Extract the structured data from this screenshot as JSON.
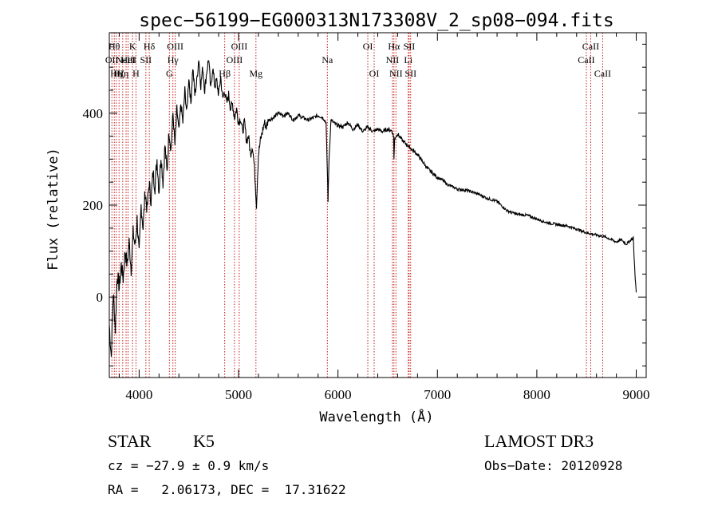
{
  "chart_data": {
    "type": "line",
    "title": "spec−56199−EG000313N173308V_2_sp08−094.fits",
    "xlabel": "Wavelength (Å)",
    "ylabel": "Flux (relative)",
    "xlim": [
      3700,
      9100
    ],
    "ylim": [
      -175,
      575
    ],
    "x_ticks": [
      4000,
      5000,
      6000,
      7000,
      8000,
      9000
    ],
    "y_ticks": [
      0,
      200,
      400
    ],
    "series": [
      {
        "name": "flux",
        "x": [
          3700,
          3720,
          3740,
          3760,
          3780,
          3800,
          3820,
          3840,
          3860,
          3880,
          3900,
          3920,
          3940,
          3960,
          3980,
          4000,
          4020,
          4040,
          4060,
          4080,
          4100,
          4120,
          4140,
          4160,
          4180,
          4200,
          4220,
          4240,
          4260,
          4280,
          4300,
          4320,
          4340,
          4360,
          4380,
          4400,
          4420,
          4440,
          4460,
          4480,
          4500,
          4520,
          4540,
          4560,
          4580,
          4600,
          4620,
          4640,
          4660,
          4680,
          4700,
          4720,
          4740,
          4760,
          4780,
          4800,
          4820,
          4840,
          4860,
          4880,
          4900,
          4920,
          4940,
          4960,
          4980,
          5000,
          5020,
          5040,
          5060,
          5080,
          5100,
          5120,
          5140,
          5160,
          5180,
          5200,
          5220,
          5240,
          5260,
          5280,
          5300,
          5350,
          5400,
          5450,
          5500,
          5550,
          5600,
          5650,
          5700,
          5750,
          5800,
          5850,
          5880,
          5890,
          5900,
          5910,
          5930,
          5980,
          6050,
          6100,
          6150,
          6200,
          6250,
          6300,
          6350,
          6400,
          6450,
          6500,
          6540,
          6560,
          6563,
          6570,
          6600,
          6650,
          6700,
          6750,
          6800,
          6850,
          6900,
          6950,
          7000,
          7050,
          7100,
          7150,
          7200,
          7300,
          7400,
          7500,
          7600,
          7650,
          7700,
          7800,
          7900,
          8000,
          8100,
          8200,
          8300,
          8400,
          8500,
          8600,
          8700,
          8800,
          8850,
          8900,
          8950,
          8970,
          8980,
          8990,
          9000
        ],
        "y": [
          -60,
          -130,
          10,
          -70,
          50,
          20,
          70,
          40,
          100,
          70,
          120,
          60,
          140,
          110,
          170,
          90,
          200,
          150,
          230,
          190,
          250,
          210,
          270,
          240,
          300,
          230,
          310,
          250,
          330,
          270,
          360,
          320,
          400,
          330,
          410,
          360,
          420,
          380,
          450,
          400,
          480,
          420,
          500,
          440,
          470,
          520,
          460,
          500,
          450,
          490,
          520,
          450,
          500,
          460,
          470,
          440,
          480,
          430,
          450,
          420,
          440,
          410,
          420,
          390,
          410,
          380,
          390,
          360,
          380,
          340,
          350,
          310,
          330,
          280,
          200,
          310,
          340,
          360,
          380,
          370,
          385,
          390,
          400,
          395,
          400,
          385,
          395,
          390,
          385,
          390,
          395,
          390,
          380,
          300,
          210,
          300,
          385,
          375,
          370,
          380,
          365,
          375,
          360,
          370,
          360,
          365,
          360,
          365,
          362,
          350,
          300,
          345,
          355,
          340,
          330,
          320,
          310,
          295,
          280,
          270,
          260,
          255,
          245,
          240,
          235,
          232,
          225,
          215,
          208,
          198,
          188,
          180,
          178,
          170,
          162,
          158,
          155,
          148,
          140,
          135,
          130,
          120,
          125,
          115,
          125,
          130,
          80,
          40,
          10
        ]
      }
    ],
    "line_markers": [
      {
        "x": 3726,
        "label": "OII",
        "row": 2
      },
      {
        "x": 3750,
        "label": "Hθ",
        "row": 1
      },
      {
        "x": 3770,
        "label": "Hη",
        "row": 3
      },
      {
        "x": 3798,
        "label": "Hζ",
        "row": 3
      },
      {
        "x": 3835,
        "label": "Hη",
        "row": 3
      },
      {
        "x": 3869,
        "label": "NeIII",
        "row": 2
      },
      {
        "x": 3889,
        "label": "HeI",
        "row": 2
      },
      {
        "x": 3934,
        "label": "K",
        "row": 1
      },
      {
        "x": 3968,
        "label": "H",
        "row": 3
      },
      {
        "x": 4068,
        "label": "SII",
        "row": 2
      },
      {
        "x": 4102,
        "label": "Hδ",
        "row": 1
      },
      {
        "x": 4304,
        "label": "G",
        "row": 3
      },
      {
        "x": 4340,
        "label": "Hγ",
        "row": 2
      },
      {
        "x": 4363,
        "label": "OIII",
        "row": 1
      },
      {
        "x": 4861,
        "label": "Hβ",
        "row": 3
      },
      {
        "x": 4959,
        "label": "OIII",
        "row": 2
      },
      {
        "x": 5007,
        "label": "OIII",
        "row": 1
      },
      {
        "x": 5175,
        "label": "Mg",
        "row": 3
      },
      {
        "x": 5893,
        "label": "Na",
        "row": 2
      },
      {
        "x": 6300,
        "label": "OI",
        "row": 1
      },
      {
        "x": 6364,
        "label": "OI",
        "row": 3
      },
      {
        "x": 6548,
        "label": "NII",
        "row": 2
      },
      {
        "x": 6563,
        "label": "Hα",
        "row": 1
      },
      {
        "x": 6583,
        "label": "NII",
        "row": 3
      },
      {
        "x": 6707,
        "label": "Li",
        "row": 2
      },
      {
        "x": 6716,
        "label": "SII",
        "row": 1
      },
      {
        "x": 6731,
        "label": "SII",
        "row": 3
      },
      {
        "x": 8498,
        "label": "CaII",
        "row": 2
      },
      {
        "x": 8542,
        "label": "CaII",
        "row": 1
      },
      {
        "x": 8662,
        "label": "CaII",
        "row": 3
      }
    ]
  },
  "info": {
    "object_class": "STAR",
    "subclass": "K5",
    "survey": "LAMOST DR3",
    "cz": "cz = −27.9 ± 0.9 km/s",
    "obs_date": "Obs−Date: 20120928",
    "coords": "RA =   2.06173, DEC =  17.31622"
  }
}
